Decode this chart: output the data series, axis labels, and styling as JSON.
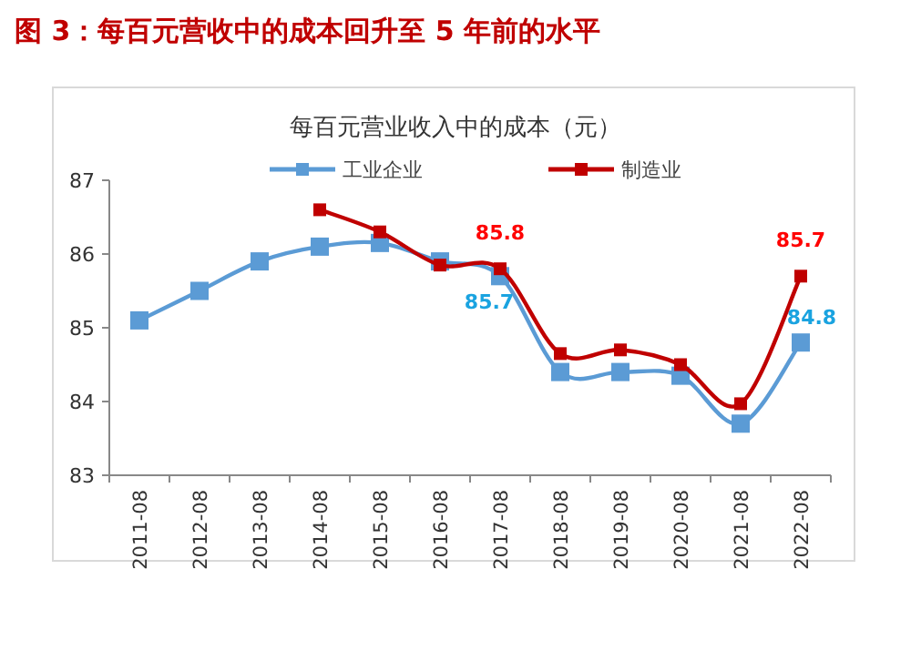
{
  "chart_data": {
    "type": "line",
    "title": "图 3：每百元营收中的成本回升至 5 年前的水平",
    "subtitle": "每百元营业收入中的成本（元）",
    "categories": [
      "2011-08",
      "2012-08",
      "2013-08",
      "2014-08",
      "2015-08",
      "2016-08",
      "2017-08",
      "2018-08",
      "2019-08",
      "2020-08",
      "2021-08",
      "2022-08"
    ],
    "series": [
      {
        "name": "工业企业",
        "color": "#5b9bd5",
        "values": [
          85.1,
          85.5,
          85.9,
          86.1,
          86.15,
          85.9,
          85.7,
          84.4,
          84.4,
          84.35,
          83.7,
          84.8
        ],
        "value_labels": [
          null,
          null,
          null,
          null,
          null,
          null,
          "85.7",
          null,
          null,
          null,
          null,
          "84.8"
        ]
      },
      {
        "name": "制造业",
        "color": "#c00000",
        "values": [
          null,
          null,
          null,
          86.6,
          86.3,
          85.85,
          85.8,
          84.65,
          84.7,
          84.5,
          83.97,
          85.7
        ],
        "value_labels": [
          null,
          null,
          null,
          null,
          null,
          null,
          "85.8",
          null,
          null,
          null,
          null,
          "85.7"
        ]
      }
    ],
    "ylim": [
      83,
      87
    ],
    "yticks": [
      83,
      84,
      85,
      86,
      87
    ],
    "grid": false,
    "legend": "top",
    "marker": "square",
    "line_style": "solid"
  }
}
